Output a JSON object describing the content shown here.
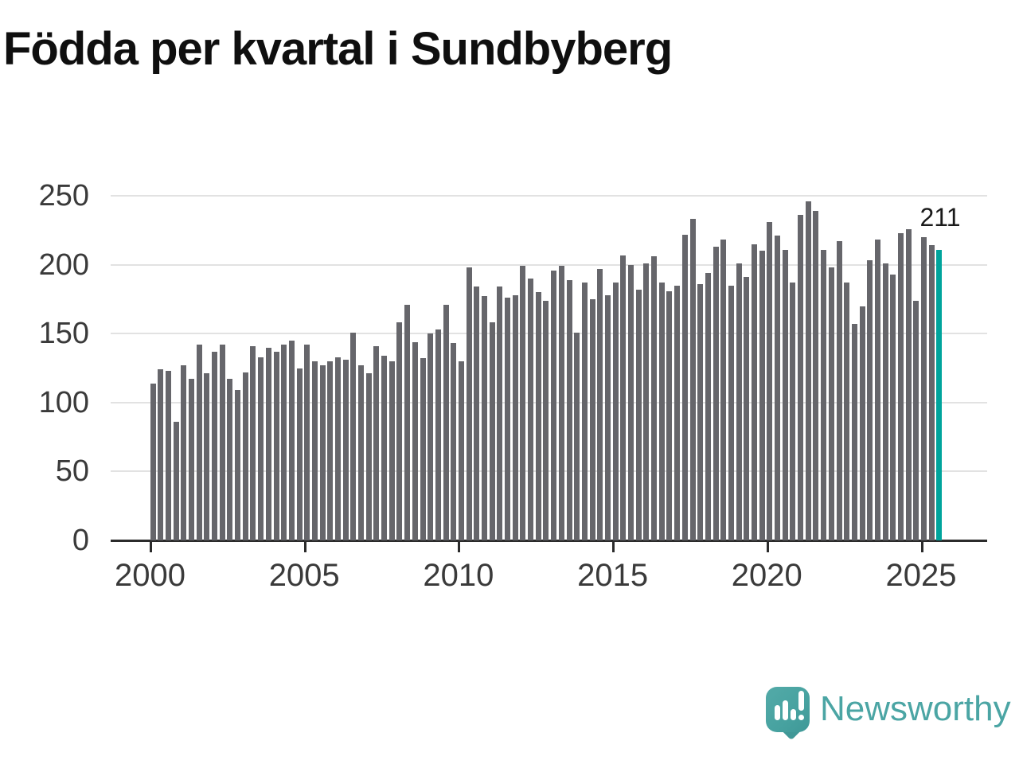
{
  "title": "Födda per kvartal i Sundbyberg",
  "annotation": {
    "label": "211"
  },
  "logo": {
    "text": "Newsworthy"
  },
  "colors": {
    "bar": "#66666b",
    "highlight": "#00a49c",
    "grid": "#e2e2e2",
    "axis": "#2b2b2b",
    "title_text": "#0f0f0f",
    "tick_text": "#3a3a3a",
    "annotation_text": "#1a1a1a",
    "logo": "#4ba5a4"
  },
  "chart_data": {
    "type": "bar",
    "title": "Födda per kvartal i Sundbyberg",
    "period": "quarterly",
    "x_start": "2000 Q1",
    "x_end": "2025 Q3",
    "values": [
      114,
      124,
      123,
      86,
      127,
      117,
      142,
      121,
      137,
      142,
      117,
      109,
      122,
      141,
      133,
      140,
      137,
      142,
      145,
      125,
      142,
      130,
      127,
      130,
      133,
      131,
      151,
      127,
      121,
      141,
      134,
      130,
      158,
      171,
      144,
      132,
      150,
      153,
      171,
      143,
      130,
      198,
      184,
      177,
      158,
      184,
      176,
      178,
      199,
      190,
      180,
      174,
      196,
      199,
      189,
      151,
      187,
      175,
      197,
      178,
      187,
      207,
      200,
      182,
      201,
      206,
      187,
      181,
      185,
      222,
      233,
      186,
      194,
      213,
      218,
      185,
      201,
      191,
      215,
      210,
      231,
      221,
      211,
      187,
      236,
      246,
      239,
      211,
      198,
      217,
      187,
      157,
      170,
      203,
      218,
      201,
      193,
      223,
      226,
      174,
      220,
      214,
      211
    ],
    "highlight_index": 102,
    "highlight_value": 211,
    "ylim": [
      0,
      250
    ],
    "yticks": [
      0,
      50,
      100,
      150,
      200,
      250
    ],
    "xticks": [
      {
        "label": "2000",
        "bar_index": 0
      },
      {
        "label": "2005",
        "bar_index": 20
      },
      {
        "label": "2010",
        "bar_index": 40
      },
      {
        "label": "2015",
        "bar_index": 60
      },
      {
        "label": "2020",
        "bar_index": 80
      },
      {
        "label": "2025",
        "bar_index": 100
      }
    ],
    "grid": "horizontal",
    "legend": "none"
  }
}
